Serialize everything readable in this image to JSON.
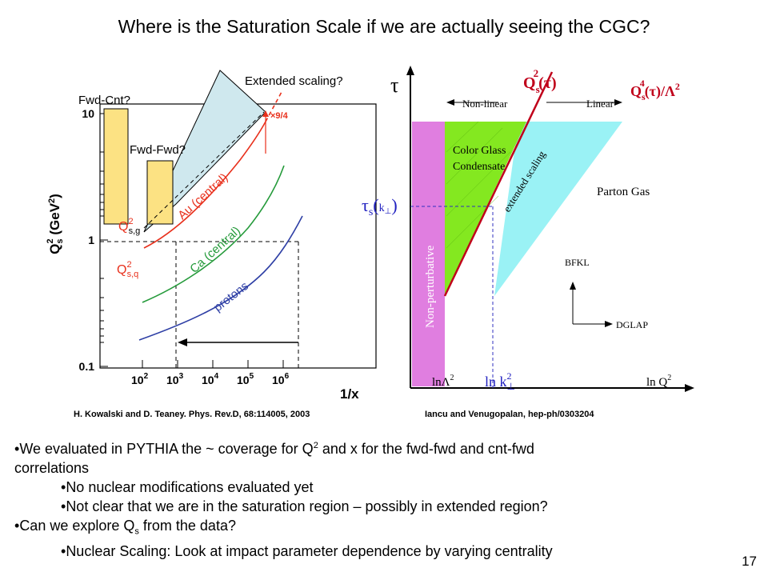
{
  "slide": {
    "title": "Where is the Saturation Scale if we are actually seeing the CGC?",
    "number": "17"
  },
  "left_figure": {
    "ylabel_base": "Q",
    "ylabel_sub": "s",
    "ylabel_sup": "2",
    "ylabel_units": "(GeV",
    "ylabel_units_sup": "2",
    "ylabel_units_close": ")",
    "xlabel": "1/x",
    "yticks": [
      "10",
      "1",
      "0.1"
    ],
    "xticks": [
      {
        "base": "10",
        "exp": "2"
      },
      {
        "base": "10",
        "exp": "3"
      },
      {
        "base": "10",
        "exp": "4"
      },
      {
        "base": "10",
        "exp": "5"
      },
      {
        "base": "10",
        "exp": "6"
      }
    ],
    "curve_labels": {
      "au": "Au (central)",
      "ca": "Ca (central)",
      "protons": "protons"
    },
    "qsg_base": "Q",
    "qsg_sup": "2",
    "qsg_sub": "s,g",
    "qsq_base": "Q",
    "qsq_sup": "2",
    "qsq_sub": "s,q",
    "factor": "×9/4",
    "annotations": {
      "fwd_cnt": "Fwd-Cnt?",
      "fwd_fwd": "Fwd-Fwd?",
      "extended": "Extended scaling?"
    },
    "colors": {
      "au": "#e8301c",
      "ca": "#249a3a",
      "protons": "#2e3fa5",
      "box": "#fce283",
      "region": "#cfe8ee"
    }
  },
  "right_figure": {
    "tau": "τ",
    "qs2_label": "Q",
    "qs2_sub": "s",
    "qs2_sup": "2",
    "qs2_arg": "(τ)",
    "qs4_label": "Q",
    "qs4_sub": "s",
    "qs4_sup": "4",
    "qs4_arg": "(τ)/Λ",
    "qs4_sup2": "2",
    "nonlinear": "Non-linear",
    "linear": "Linear",
    "cgc_line1": "Color Glass",
    "cgc_line2": "Condensate",
    "extended": "extended scaling",
    "parton_gas": "Parton Gas",
    "nonpert": "Non-perturbative",
    "taus_label": "τ",
    "taus_sub": "s",
    "taus_arg": "k",
    "bfkl": "BFKL",
    "dglap": "DGLAP",
    "lnlambda": "lnΛ",
    "lnlambda_sup": "2",
    "lnk": "ln k",
    "lnk_sup": "2",
    "lnk_sub": "⊥",
    "lnq": "ln Q",
    "lnq_sup": "2",
    "colors": {
      "nonpert": "#e07ee0",
      "cgc": "#84e820",
      "parton": "#9af2f5",
      "line": "#c0001a",
      "label": "#c0001a",
      "taus": "#2020c0"
    }
  },
  "citations": {
    "left": "H. Kowalski and D. Teaney. Phys. Rev.D, 68:114005, 2003",
    "right": "Iancu and Venugopalan, hep-ph/0303204"
  },
  "bullets": {
    "b1_pre": "We evaluated in PYTHIA the ~ coverage for Q",
    "b1_sup": "2",
    "b1_post": " and x for the fwd-fwd and cnt-fwd",
    "b1_cont": "correlations",
    "b2": "No nuclear modifications evaluated yet",
    "b3": "Not clear that we are in the saturation region – possibly in extended region?",
    "b4_pre": "Can we explore Q",
    "b4_sub": "s",
    "b4_post": " from the data?",
    "b5": "Nuclear Scaling: Look at impact parameter dependence by varying centrality"
  }
}
